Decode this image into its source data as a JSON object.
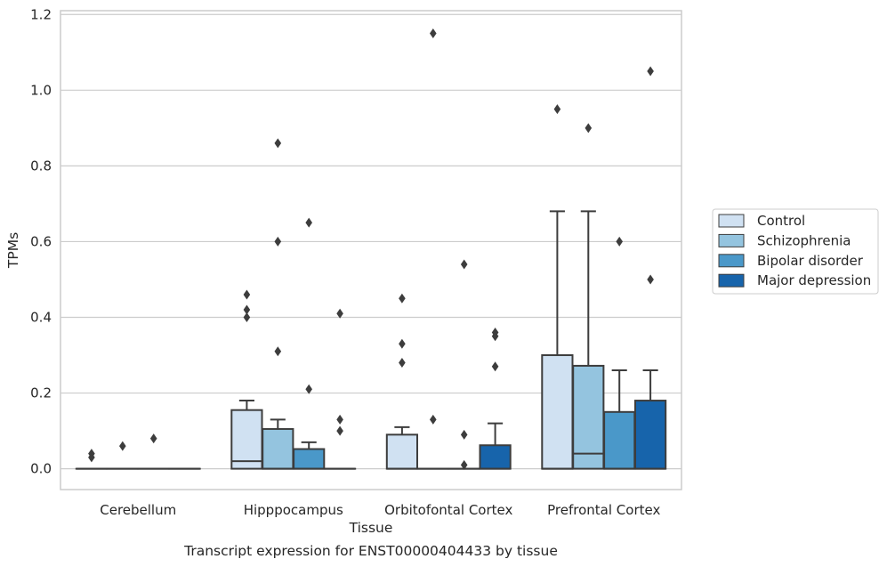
{
  "chart_data": {
    "type": "box",
    "title": "Transcript expression for ENST00000404433 by tissue",
    "xlabel": "Tissue",
    "ylabel": "TPMs",
    "ylim": [
      -0.055,
      1.21
    ],
    "yticks": [
      "0.0",
      "0.2",
      "0.4",
      "0.6",
      "0.8",
      "1.0",
      "1.2"
    ],
    "grid": true,
    "legend_position": "right",
    "categories": [
      "Cerebellum",
      "Hipppocampus",
      "Orbitofontal Cortex",
      "Prefrontal Cortex"
    ],
    "series": [
      {
        "name": "Control",
        "color": "#d0e1f2",
        "boxes": [
          {
            "q1": 0,
            "median": 0,
            "q3": 0,
            "whisker_low": 0,
            "whisker_high": 0,
            "outliers": [
              0.03,
              0.04
            ]
          },
          {
            "q1": 0,
            "median": 0.02,
            "q3": 0.155,
            "whisker_low": 0,
            "whisker_high": 0.18,
            "outliers": [
              0.4,
              0.42,
              0.46
            ]
          },
          {
            "q1": 0,
            "median": 0,
            "q3": 0.09,
            "whisker_low": 0,
            "whisker_high": 0.11,
            "outliers": [
              0.28,
              0.33,
              0.45
            ]
          },
          {
            "q1": 0,
            "median": 0,
            "q3": 0.3,
            "whisker_low": 0,
            "whisker_high": 0.68,
            "outliers": [
              0.95
            ]
          }
        ]
      },
      {
        "name": "Schizophrenia",
        "color": "#94c4df",
        "boxes": [
          {
            "q1": 0,
            "median": 0,
            "q3": 0,
            "whisker_low": 0,
            "whisker_high": 0,
            "outliers": [
              0.06
            ]
          },
          {
            "q1": 0,
            "median": 0,
            "q3": 0.105,
            "whisker_low": 0,
            "whisker_high": 0.13,
            "outliers": [
              0.31,
              0.6,
              0.86
            ]
          },
          {
            "q1": 0,
            "median": 0,
            "q3": 0,
            "whisker_low": 0,
            "whisker_high": 0,
            "outliers": [
              0.13,
              1.15
            ]
          },
          {
            "q1": 0,
            "median": 0.04,
            "q3": 0.272,
            "whisker_low": 0,
            "whisker_high": 0.68,
            "outliers": [
              0.9
            ]
          }
        ]
      },
      {
        "name": "Bipolar disorder",
        "color": "#4a98c9",
        "boxes": [
          {
            "q1": 0,
            "median": 0,
            "q3": 0,
            "whisker_low": 0,
            "whisker_high": 0,
            "outliers": [
              0.08
            ]
          },
          {
            "q1": 0,
            "median": 0,
            "q3": 0.052,
            "whisker_low": 0,
            "whisker_high": 0.07,
            "outliers": [
              0.21,
              0.65
            ]
          },
          {
            "q1": 0,
            "median": 0,
            "q3": 0,
            "whisker_low": 0,
            "whisker_high": 0,
            "outliers": [
              0.01,
              0.09,
              0.54
            ]
          },
          {
            "q1": 0,
            "median": 0,
            "q3": 0.15,
            "whisker_low": 0,
            "whisker_high": 0.26,
            "outliers": [
              0.6
            ]
          }
        ]
      },
      {
        "name": "Major depression",
        "color": "#1764ab",
        "boxes": [
          {
            "q1": 0,
            "median": 0,
            "q3": 0,
            "whisker_low": 0,
            "whisker_high": 0,
            "outliers": []
          },
          {
            "q1": 0,
            "median": 0,
            "q3": 0,
            "whisker_low": 0,
            "whisker_high": 0,
            "outliers": [
              0.1,
              0.13,
              0.41
            ]
          },
          {
            "q1": 0,
            "median": 0,
            "q3": 0.062,
            "whisker_low": 0,
            "whisker_high": 0.12,
            "outliers": [
              0.27,
              0.35,
              0.36
            ]
          },
          {
            "q1": 0,
            "median": 0,
            "q3": 0.18,
            "whisker_low": 0,
            "whisker_high": 0.26,
            "outliers": [
              0.5,
              1.05
            ]
          }
        ]
      }
    ]
  }
}
